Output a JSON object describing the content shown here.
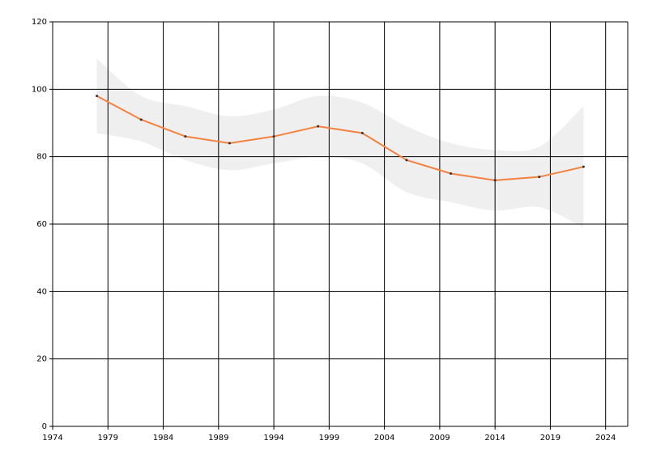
{
  "chart_data": {
    "type": "line",
    "x": [
      1978,
      1982,
      1986,
      1990,
      1994,
      1998,
      2002,
      2006,
      2010,
      2014,
      2018,
      2022
    ],
    "series": [
      {
        "color": "#f5813f",
        "values": [
          98,
          91,
          86,
          84,
          86,
          89,
          87,
          79,
          75,
          73,
          74,
          77
        ]
      }
    ],
    "band": {
      "color": "#efefef",
      "upper": [
        109,
        98,
        95,
        92,
        94,
        98,
        96,
        89,
        84,
        82,
        83,
        95
      ],
      "lower": [
        87,
        84.5,
        79,
        76,
        78,
        80,
        78,
        69.5,
        66.5,
        64,
        65,
        59
      ]
    },
    "xlim": [
      1974,
      2026
    ],
    "xticks": [
      1974,
      1979,
      1984,
      1989,
      1994,
      1999,
      2004,
      2009,
      2014,
      2019,
      2024
    ],
    "ylim": [
      0,
      120
    ],
    "yticks": [
      0,
      20,
      40,
      60,
      80,
      100,
      120
    ],
    "grid": true
  }
}
